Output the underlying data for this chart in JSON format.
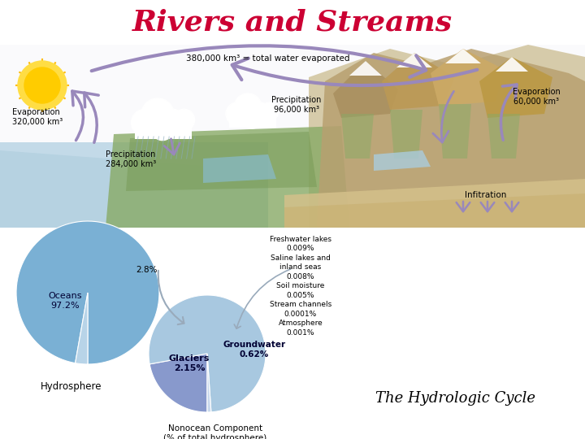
{
  "title": "Rivers and Streams",
  "title_color": "#cc0033",
  "subtitle": "The Hydrologic Cycle",
  "subtitle_color": "#000000",
  "background_color": "#ffffff",
  "top_label": "380,000 km³ = total water evaporated",
  "evap_left_label": "Evaporation\n320,000 km³",
  "precip_left_label": "Precipitation\n284,000 km³",
  "precip_mid_label": "Precipitation\n96,000 km³",
  "evap_right_label": "Evaporation\n60,000 km³",
  "infiltration_label": "Infitration",
  "pie1_sizes": [
    97.2,
    2.8
  ],
  "pie1_colors": [
    "#7ab0d4",
    "#b8d4e8"
  ],
  "pie1_label_ocean": "Oceans\n97.2%",
  "pie1_label_pct": "2.8%",
  "hydrosphere_label": "Hydrosphere",
  "pie2_sizes": [
    77.14,
    22.14,
    0.72
  ],
  "pie2_colors": [
    "#a8c8e0",
    "#8899cc",
    "#c8d8ec"
  ],
  "pie2_label_glaciers": "Glaciers\n2.15%",
  "pie2_label_gw": "Groundwater\n0.62%",
  "nonocean_title": "Nonocean Component\n(% of total hydrosphere)",
  "breakdown_lines": [
    "Freshwater lakes",
    "0.009%",
    "Saline lakes and",
    "inland seas",
    "0.008%",
    "Soil moisture",
    "0.005%",
    "Stream channels",
    "0.0001%",
    "Atmosphere",
    "0.001%"
  ],
  "arrow_color": "#9988bb",
  "text_color": "#000000"
}
